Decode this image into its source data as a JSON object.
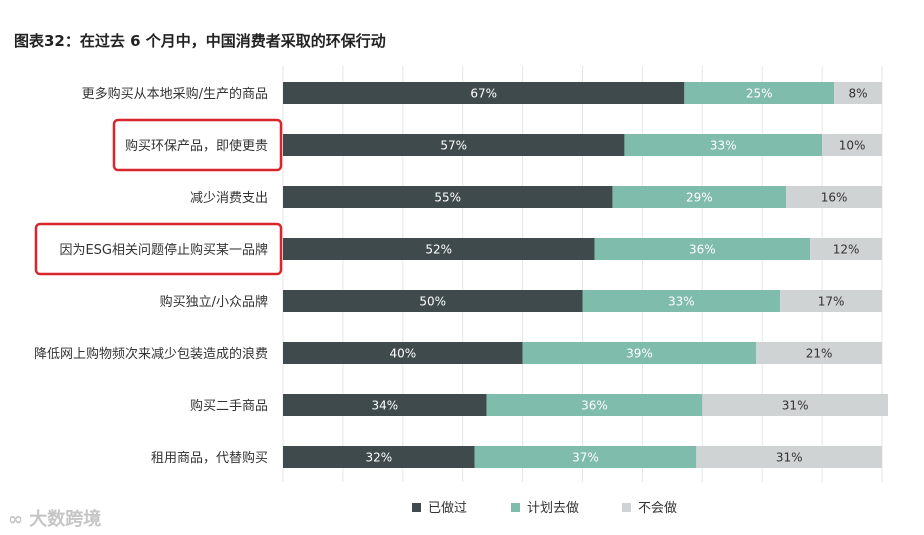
{
  "chart_data": {
    "type": "bar",
    "orientation": "horizontal",
    "stacked": true,
    "title": "图表32：在过去 6 个月中，中国消费者采取的环保行动",
    "categories": [
      "更多购买从本地采购/生产的商品",
      "购买环保产品，即使更贵",
      "减少消费支出",
      "因为ESG相关问题停止购买某一品牌",
      "购买独立/小众品牌",
      "降低网上购物频次来减少包装造成的浪费",
      "购买二手商品",
      "租用商品，代替购买"
    ],
    "series": [
      {
        "name": "已做过",
        "values": [
          67,
          57,
          55,
          52,
          50,
          40,
          34,
          32
        ],
        "labels": [
          "67%",
          "57%",
          "55%",
          "52%",
          "50%",
          "40%",
          "34%",
          "32%"
        ]
      },
      {
        "name": "计划去做",
        "values": [
          25,
          33,
          29,
          36,
          33,
          39,
          36,
          37
        ],
        "labels": [
          "25%",
          "33%",
          "29%",
          "36%",
          "33%",
          "39%",
          "36%",
          "37%"
        ]
      },
      {
        "name": "不会做",
        "values": [
          8,
          10,
          16,
          12,
          17,
          21,
          31,
          31
        ],
        "labels": [
          "8%",
          "10%",
          "16%",
          "12%",
          "17%",
          "21%",
          "31%",
          "31%"
        ]
      }
    ],
    "xlim": [
      0,
      100
    ],
    "highlighted_categories": [
      "购买环保产品，即使更贵",
      "因为ESG相关问题停止购买某一品牌"
    ],
    "legend_position": "bottom",
    "grid": true
  },
  "colors": {
    "series": [
      "#3f4a4c",
      "#7fbcab",
      "#cfd3d3"
    ],
    "series_text": [
      "#ffffff",
      "#ffffff",
      "#333333"
    ],
    "highlight_box": "#d9262c",
    "grid": "#e6e6e6"
  },
  "watermark": "大数跨境"
}
